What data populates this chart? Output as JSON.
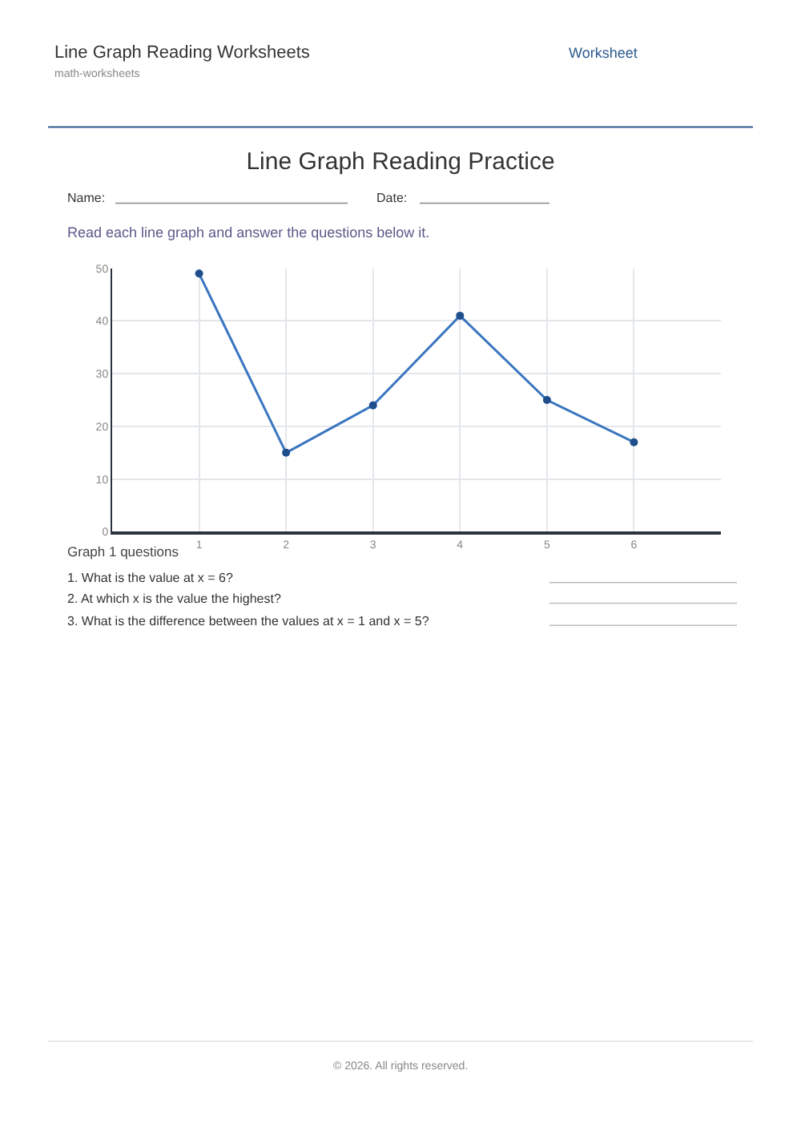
{
  "chart_data": {
    "type": "line",
    "title": "Line Graph Reading Practice",
    "x": [
      1,
      2,
      3,
      4,
      5,
      6
    ],
    "series": [
      {
        "color": "#3a76c0",
        "values": [
          49,
          15,
          24,
          41,
          25,
          17
        ]
      }
    ],
    "xlim": [
      0,
      7
    ],
    "xticks": [
      1,
      2,
      3,
      4,
      5,
      6
    ],
    "ylim": [
      0,
      50
    ],
    "yticks": [
      0,
      10,
      20,
      30,
      40,
      50
    ],
    "grid": true,
    "legend": false,
    "marker": "circle",
    "line_style": "solid",
    "annotations": [
      "Line Graph Reading Worksheets",
      "math-worksheets",
      "Worksheet",
      "Name:",
      "Date:",
      "Read each line graph and answer the questions below it.",
      "Graph 1 questions",
      "1. What is the value at x = 6?",
      "2. At which x is the value the highest?",
      "3. What is the difference between the values at x = 1 and x = 5?",
      "© 2026. All rights reserved."
    ]
  }
}
